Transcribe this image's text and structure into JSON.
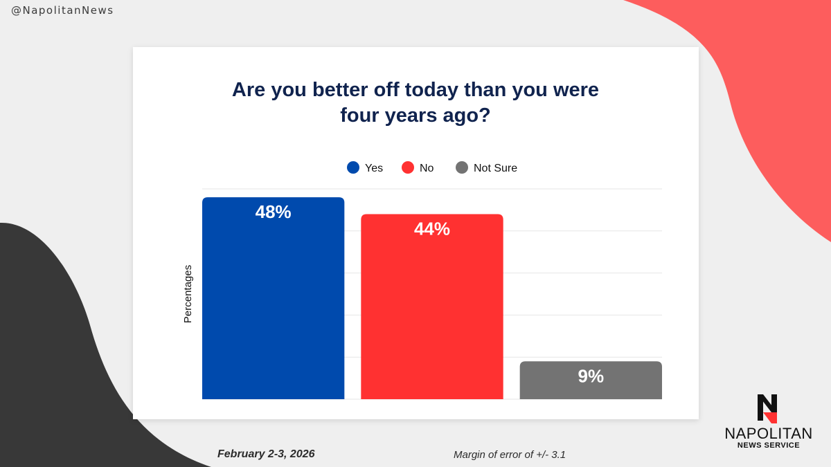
{
  "handle": "@NapolitanNews",
  "colors": {
    "background": "#efefef",
    "coral_shape": "#fd5d5d",
    "dark_shape": "#383838",
    "title": "#10234e"
  },
  "footer": {
    "date": "February 2-3, 2026",
    "margin_of_error": "Margin of error of +/- 3.1"
  },
  "logo": {
    "mark_icon": "napolitan-n-logo-icon",
    "name": "NAPOLITAN",
    "subtitle": "NEWS SERVICE"
  },
  "chart_data": {
    "type": "bar",
    "title_lines": [
      "Are you better off today than you were",
      "four years ago?"
    ],
    "ylabel": "Percentages",
    "xlabel": "",
    "categories": [
      "Yes",
      "No",
      "Not Sure"
    ],
    "values": [
      48,
      44,
      9
    ],
    "data_labels": [
      "48%",
      "44%",
      "9%"
    ],
    "colors": [
      "#004aad",
      "#ff3131",
      "#737373"
    ],
    "ylim": [
      0,
      50
    ],
    "grid": true,
    "legend": "top-center"
  }
}
